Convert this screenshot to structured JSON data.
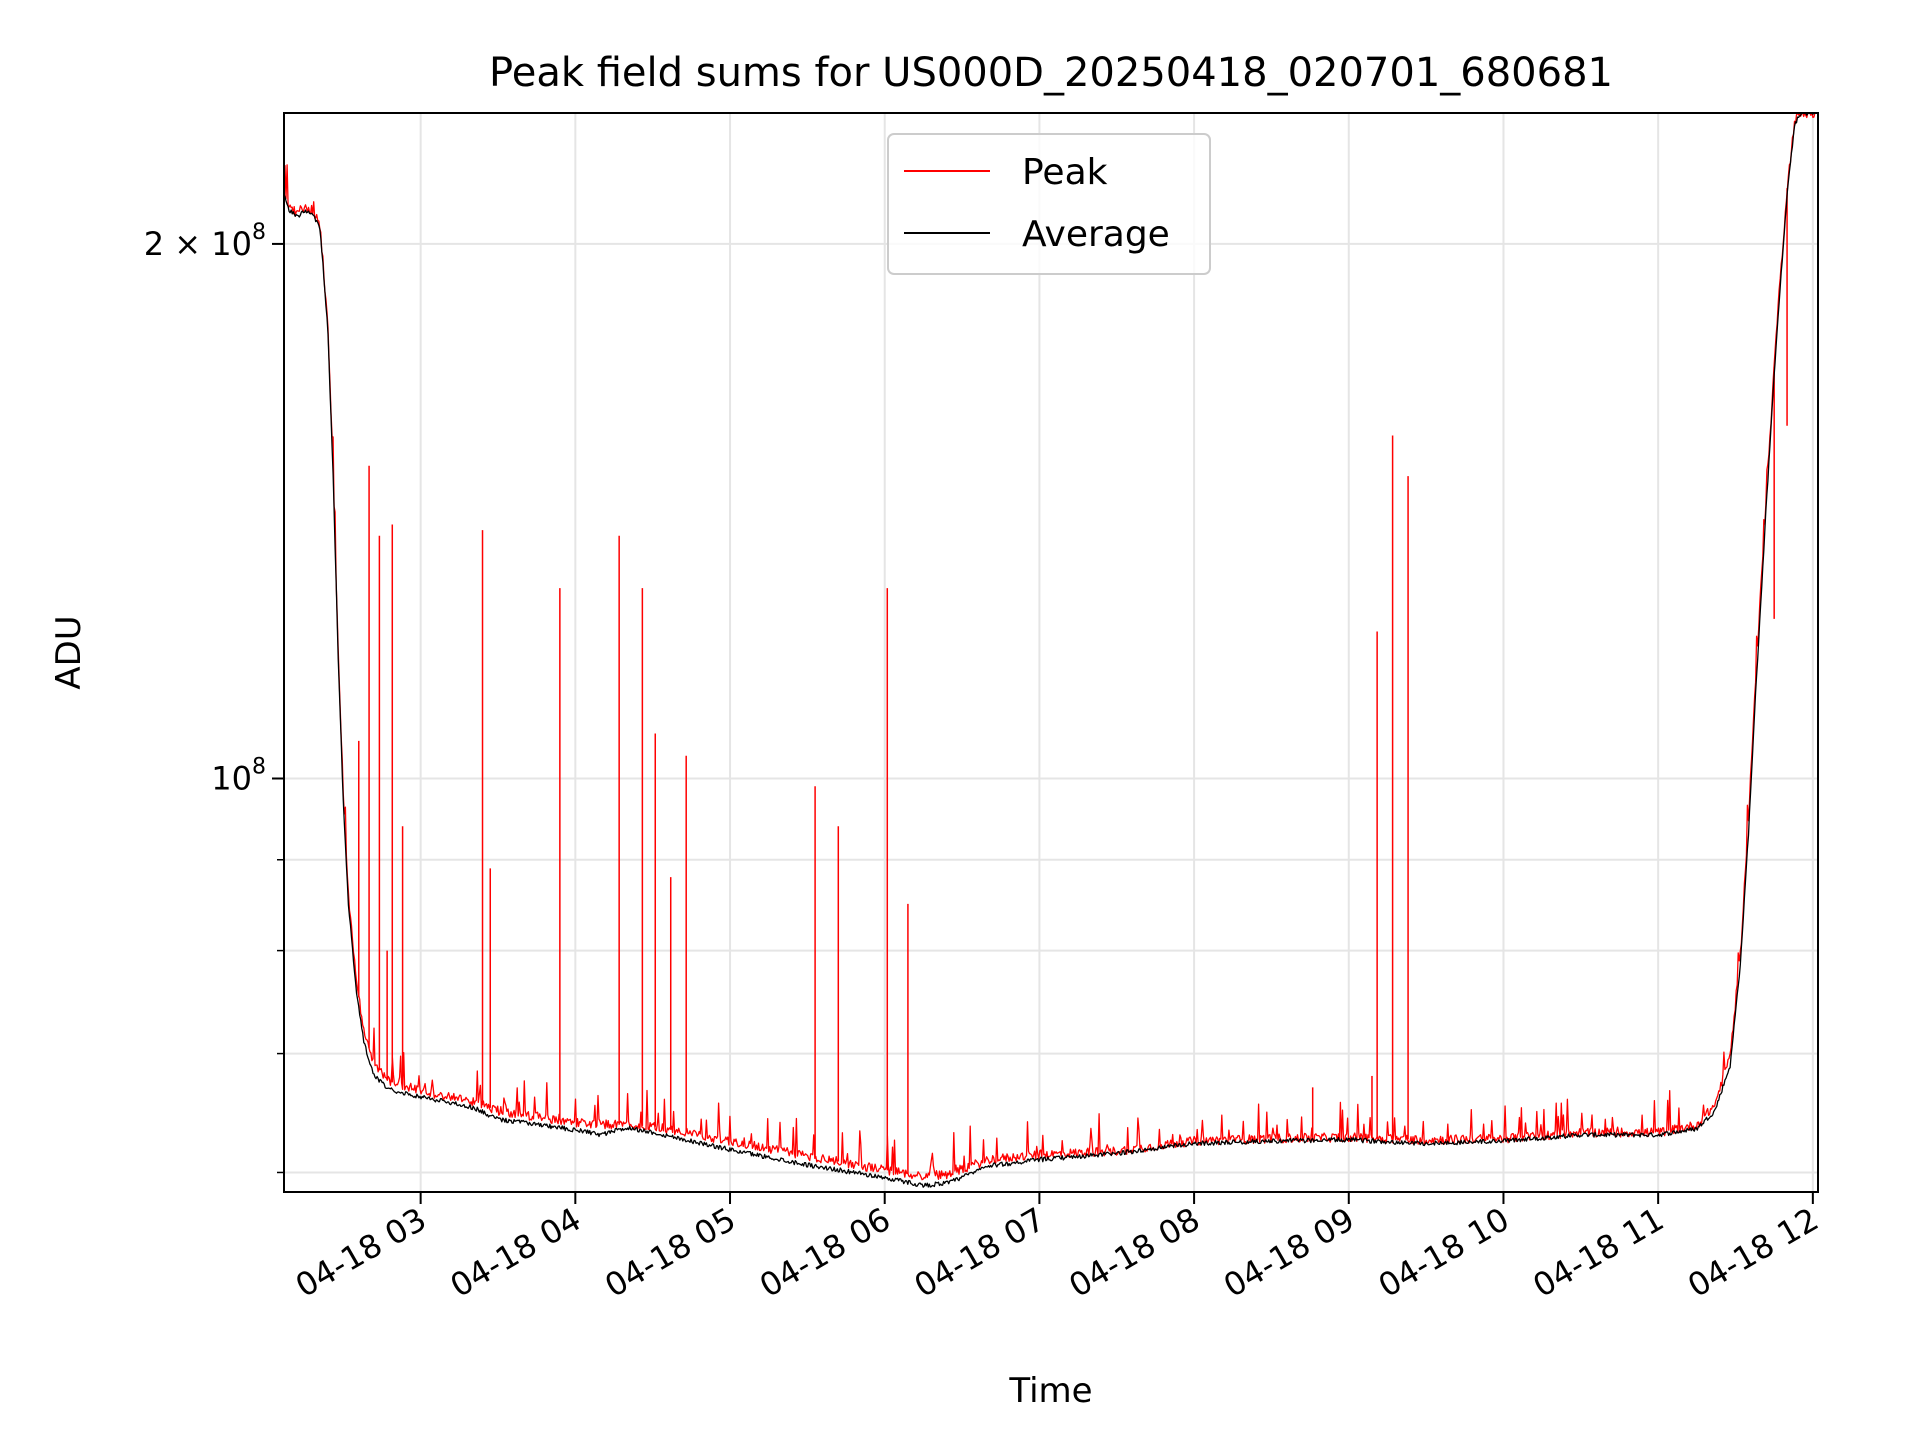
{
  "chart_data": {
    "type": "line",
    "title": "Peak field sums for US000D_20250418_020701_680681",
    "xlabel": "Time",
    "ylabel": "ADU",
    "y_scale": "log",
    "grid": true,
    "legend_position": "top-center",
    "x_ticks": [
      "04-18 03",
      "04-18 04",
      "04-18 05",
      "04-18 06",
      "04-18 07",
      "04-18 08",
      "04-18 09",
      "04-18 10",
      "04-18 11",
      "04-18 12"
    ],
    "y_tick_labels": [
      {
        "value": 200000000,
        "base": "2 × 10",
        "exp": "8"
      },
      {
        "value": 100000000,
        "base": "10",
        "exp": "8"
      }
    ],
    "y_minor_ticks": [
      60000000,
      70000000,
      80000000,
      90000000
    ],
    "xlim": [
      "2025-04-18 02:07",
      "2025-04-18 12:02"
    ],
    "ylim": [
      58500000,
      237000000
    ],
    "colors": {
      "peak": "#ff0000",
      "average": "#000000",
      "grid": "#e5e5e5"
    },
    "series": [
      {
        "name": "Peak",
        "color": "#ff0000",
        "baseline": [
          [
            "2025-04-18 02:07",
            214000000
          ],
          [
            "2025-04-18 02:09",
            210000000
          ],
          [
            "2025-04-18 02:12",
            208000000
          ],
          [
            "2025-04-18 02:15",
            210000000
          ],
          [
            "2025-04-18 02:18",
            209000000
          ],
          [
            "2025-04-18 02:21",
            205000000
          ],
          [
            "2025-04-18 02:24",
            180000000
          ],
          [
            "2025-04-18 02:26",
            150000000
          ],
          [
            "2025-04-18 02:28",
            118000000
          ],
          [
            "2025-04-18 02:30",
            98000000
          ],
          [
            "2025-04-18 02:32",
            86000000
          ],
          [
            "2025-04-18 02:35",
            77000000
          ],
          [
            "2025-04-18 02:38",
            72000000
          ],
          [
            "2025-04-18 02:42",
            69000000
          ],
          [
            "2025-04-18 02:48",
            67500000
          ],
          [
            "2025-04-18 03:00",
            66700000
          ],
          [
            "2025-04-18 03:20",
            65800000
          ],
          [
            "2025-04-18 03:30",
            65000000
          ],
          [
            "2025-04-18 04:00",
            64000000
          ],
          [
            "2025-04-18 04:30",
            63700000
          ],
          [
            "2025-04-18 05:00",
            62500000
          ],
          [
            "2025-04-18 05:30",
            61300000
          ],
          [
            "2025-04-18 06:00",
            60200000
          ],
          [
            "2025-04-18 06:15",
            59700000
          ],
          [
            "2025-04-18 06:25",
            59900000
          ],
          [
            "2025-04-18 06:40",
            61000000
          ],
          [
            "2025-04-18 07:00",
            61400000
          ],
          [
            "2025-04-18 07:30",
            61700000
          ],
          [
            "2025-04-18 08:00",
            62500000
          ],
          [
            "2025-04-18 08:30",
            62700000
          ],
          [
            "2025-04-18 09:00",
            62800000
          ],
          [
            "2025-04-18 09:30",
            62600000
          ],
          [
            "2025-04-18 10:00",
            62700000
          ],
          [
            "2025-04-18 10:30",
            63200000
          ],
          [
            "2025-04-18 11:00",
            63200000
          ],
          [
            "2025-04-18 11:15",
            63800000
          ],
          [
            "2025-04-18 11:22",
            65500000
          ],
          [
            "2025-04-18 11:28",
            70000000
          ],
          [
            "2025-04-18 11:32",
            80000000
          ],
          [
            "2025-04-18 11:35",
            95000000
          ],
          [
            "2025-04-18 11:38",
            115000000
          ],
          [
            "2025-04-18 11:42",
            145000000
          ],
          [
            "2025-04-18 11:46",
            180000000
          ],
          [
            "2025-04-18 11:50",
            215000000
          ],
          [
            "2025-04-18 11:53",
            235000000
          ],
          [
            "2025-04-18 11:56",
            237000000
          ],
          [
            "2025-04-18 12:02",
            237000000
          ]
        ],
        "spikes": [
          [
            "2025-04-18 02:36",
            105000000
          ],
          [
            "2025-04-18 02:40",
            150000000
          ],
          [
            "2025-04-18 02:44",
            137000000
          ],
          [
            "2025-04-18 02:47",
            80000000
          ],
          [
            "2025-04-18 02:49",
            139000000
          ],
          [
            "2025-04-18 02:53",
            94000000
          ],
          [
            "2025-04-18 03:24",
            138000000
          ],
          [
            "2025-04-18 03:27",
            89000000
          ],
          [
            "2025-04-18 03:54",
            128000000
          ],
          [
            "2025-04-18 04:17",
            137000000
          ],
          [
            "2025-04-18 04:26",
            128000000
          ],
          [
            "2025-04-18 04:31",
            106000000
          ],
          [
            "2025-04-18 04:37",
            88000000
          ],
          [
            "2025-04-18 04:43",
            103000000
          ],
          [
            "2025-04-18 05:33",
            99000000
          ],
          [
            "2025-04-18 05:42",
            94000000
          ],
          [
            "2025-04-18 06:01",
            128000000
          ],
          [
            "2025-04-18 06:09",
            85000000
          ],
          [
            "2025-04-18 08:46",
            67000000
          ],
          [
            "2025-04-18 09:09",
            68000000
          ],
          [
            "2025-04-18 09:11",
            121000000
          ],
          [
            "2025-04-18 09:17",
            156000000
          ],
          [
            "2025-04-18 09:23",
            148000000
          ],
          [
            "2025-04-18 11:45",
            123000000
          ],
          [
            "2025-04-18 11:50",
            158000000
          ]
        ]
      },
      {
        "name": "Average",
        "color": "#000000",
        "baseline": [
          [
            "2025-04-18 02:07",
            213000000
          ],
          [
            "2025-04-18 02:09",
            209000000
          ],
          [
            "2025-04-18 02:12",
            207000000
          ],
          [
            "2025-04-18 02:15",
            209000000
          ],
          [
            "2025-04-18 02:18",
            208000000
          ],
          [
            "2025-04-18 02:21",
            204000000
          ],
          [
            "2025-04-18 02:24",
            179000000
          ],
          [
            "2025-04-18 02:26",
            149000000
          ],
          [
            "2025-04-18 02:28",
            117000000
          ],
          [
            "2025-04-18 02:30",
            97000000
          ],
          [
            "2025-04-18 02:32",
            85000000
          ],
          [
            "2025-04-18 02:35",
            76000000
          ],
          [
            "2025-04-18 02:38",
            71000000
          ],
          [
            "2025-04-18 02:42",
            68000000
          ],
          [
            "2025-04-18 02:48",
            66800000
          ],
          [
            "2025-04-18 03:00",
            66200000
          ],
          [
            "2025-04-18 03:20",
            65300000
          ],
          [
            "2025-04-18 03:30",
            64300000
          ],
          [
            "2025-04-18 04:00",
            63400000
          ],
          [
            "2025-04-18 04:10",
            63000000
          ],
          [
            "2025-04-18 04:20",
            63600000
          ],
          [
            "2025-04-18 04:30",
            63200000
          ],
          [
            "2025-04-18 05:00",
            61800000
          ],
          [
            "2025-04-18 05:30",
            60600000
          ],
          [
            "2025-04-18 06:00",
            59600000
          ],
          [
            "2025-04-18 06:15",
            59000000
          ],
          [
            "2025-04-18 06:25",
            59200000
          ],
          [
            "2025-04-18 06:40",
            60500000
          ],
          [
            "2025-04-18 07:00",
            61000000
          ],
          [
            "2025-04-18 07:30",
            61500000
          ],
          [
            "2025-04-18 08:00",
            62300000
          ],
          [
            "2025-04-18 08:30",
            62500000
          ],
          [
            "2025-04-18 09:00",
            62600000
          ],
          [
            "2025-04-18 09:30",
            62300000
          ],
          [
            "2025-04-18 10:00",
            62500000
          ],
          [
            "2025-04-18 10:30",
            63000000
          ],
          [
            "2025-04-18 11:00",
            63000000
          ],
          [
            "2025-04-18 11:15",
            63500000
          ],
          [
            "2025-04-18 11:22",
            65000000
          ],
          [
            "2025-04-18 11:28",
            69000000
          ],
          [
            "2025-04-18 11:32",
            79000000
          ],
          [
            "2025-04-18 11:35",
            93000000
          ],
          [
            "2025-04-18 11:38",
            113000000
          ],
          [
            "2025-04-18 11:42",
            143000000
          ],
          [
            "2025-04-18 11:46",
            178000000
          ],
          [
            "2025-04-18 11:50",
            213000000
          ],
          [
            "2025-04-18 11:53",
            234000000
          ],
          [
            "2025-04-18 11:56",
            237000000
          ],
          [
            "2025-04-18 12:02",
            237000000
          ]
        ]
      }
    ]
  }
}
